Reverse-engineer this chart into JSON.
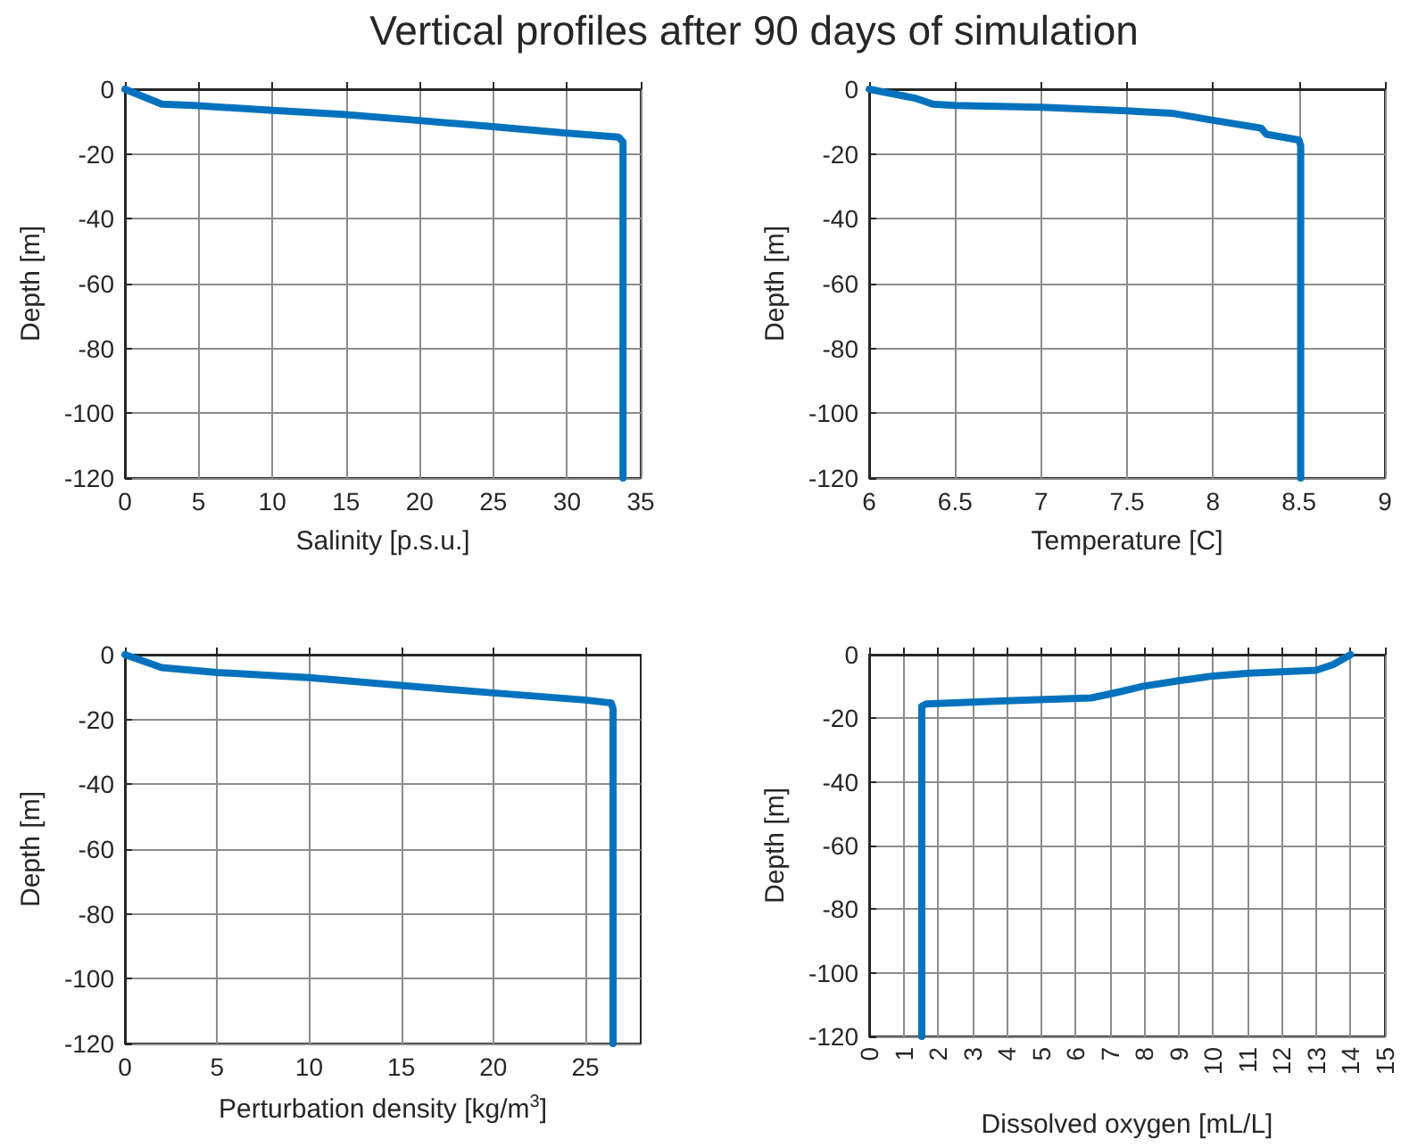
{
  "chart_data": [
    {
      "type": "line",
      "title": "Vertical profiles after 90 days of simulation",
      "xlabel": "Salinity [p.s.u.]",
      "ylabel": "Depth [m]",
      "xlim": [
        0,
        35
      ],
      "xticks": [
        0,
        5,
        10,
        15,
        20,
        25,
        30,
        35
      ],
      "ylim": [
        -120,
        0
      ],
      "yticks": [
        -120,
        -100,
        -80,
        -60,
        -40,
        -20,
        0
      ],
      "grid": true,
      "marker": "none",
      "line_style": "solid",
      "series": [
        {
          "color": "#0072bd",
          "x": [
            0,
            2.5,
            4.7,
            9.8,
            14.8,
            19.8,
            24.8,
            29.8,
            33.5,
            33.8,
            33.8
          ],
          "values": [
            0,
            -4.6,
            -5,
            -6.5,
            -7.8,
            -9.6,
            -11.5,
            -13.5,
            -14.8,
            -16.3,
            -120
          ]
        }
      ]
    },
    {
      "type": "line",
      "xlabel": "Temperature [C]",
      "ylabel": "Depth [m]",
      "xlim": [
        6,
        9
      ],
      "xticks": [
        6,
        6.5,
        7,
        7.5,
        8,
        8.5,
        9
      ],
      "ylim": [
        -120,
        0
      ],
      "yticks": [
        -120,
        -100,
        -80,
        -60,
        -40,
        -20,
        0
      ],
      "grid": true,
      "marker": "none",
      "line_style": "solid",
      "series": [
        {
          "color": "#0072bd",
          "x": [
            6,
            6.27,
            6.37,
            6.5,
            7,
            7.5,
            7.76,
            8,
            8.28,
            8.31,
            8.5,
            8.51,
            8.51
          ],
          "values": [
            0,
            -2.8,
            -4.6,
            -5,
            -5.6,
            -6.7,
            -7.4,
            -9.6,
            -12,
            -13.9,
            -15.7,
            -17.6,
            -120
          ]
        }
      ]
    },
    {
      "type": "line",
      "xlabel": "Perturbation density [kg/m$^{3}$]",
      "ylabel": "Depth [m]",
      "xlim": [
        0,
        28
      ],
      "xticks": [
        0,
        5,
        10,
        15,
        20,
        25
      ],
      "ylim": [
        -120,
        0
      ],
      "yticks": [
        -120,
        -100,
        -80,
        -60,
        -40,
        -20,
        0
      ],
      "grid": true,
      "marker": "none",
      "line_style": "solid",
      "series": [
        {
          "color": "#0072bd",
          "x": [
            0,
            2,
            5,
            10,
            15,
            20,
            25,
            26.4,
            26.5,
            26.5
          ],
          "values": [
            0,
            -4,
            -5.5,
            -7.1,
            -9.5,
            -11.8,
            -14,
            -14.9,
            -16.7,
            -120
          ]
        }
      ]
    },
    {
      "type": "line",
      "xlabel": "Dissolved oxygen [mL/L]",
      "ylabel": "Depth [m]",
      "xlim": [
        0,
        15
      ],
      "xticks": [
        0,
        1,
        2,
        3,
        4,
        5,
        6,
        7,
        8,
        9,
        10,
        11,
        12,
        13,
        14,
        15
      ],
      "ylim": [
        -120,
        0
      ],
      "yticks": [
        -120,
        -100,
        -80,
        -60,
        -40,
        -20,
        0
      ],
      "grid": true,
      "marker": "none",
      "line_style": "solid",
      "series": [
        {
          "color": "#0072bd",
          "x": [
            1.53,
            1.53,
            1.66,
            3.95,
            6.46,
            7.07,
            7.94,
            9,
            10,
            11.06,
            13,
            13.5,
            14
          ],
          "values": [
            -120,
            -16.2,
            -15.5,
            -14.5,
            -13.6,
            -12.2,
            -10,
            -8.2,
            -6.7,
            -5.8,
            -4.9,
            -3.1,
            0
          ]
        }
      ]
    }
  ]
}
